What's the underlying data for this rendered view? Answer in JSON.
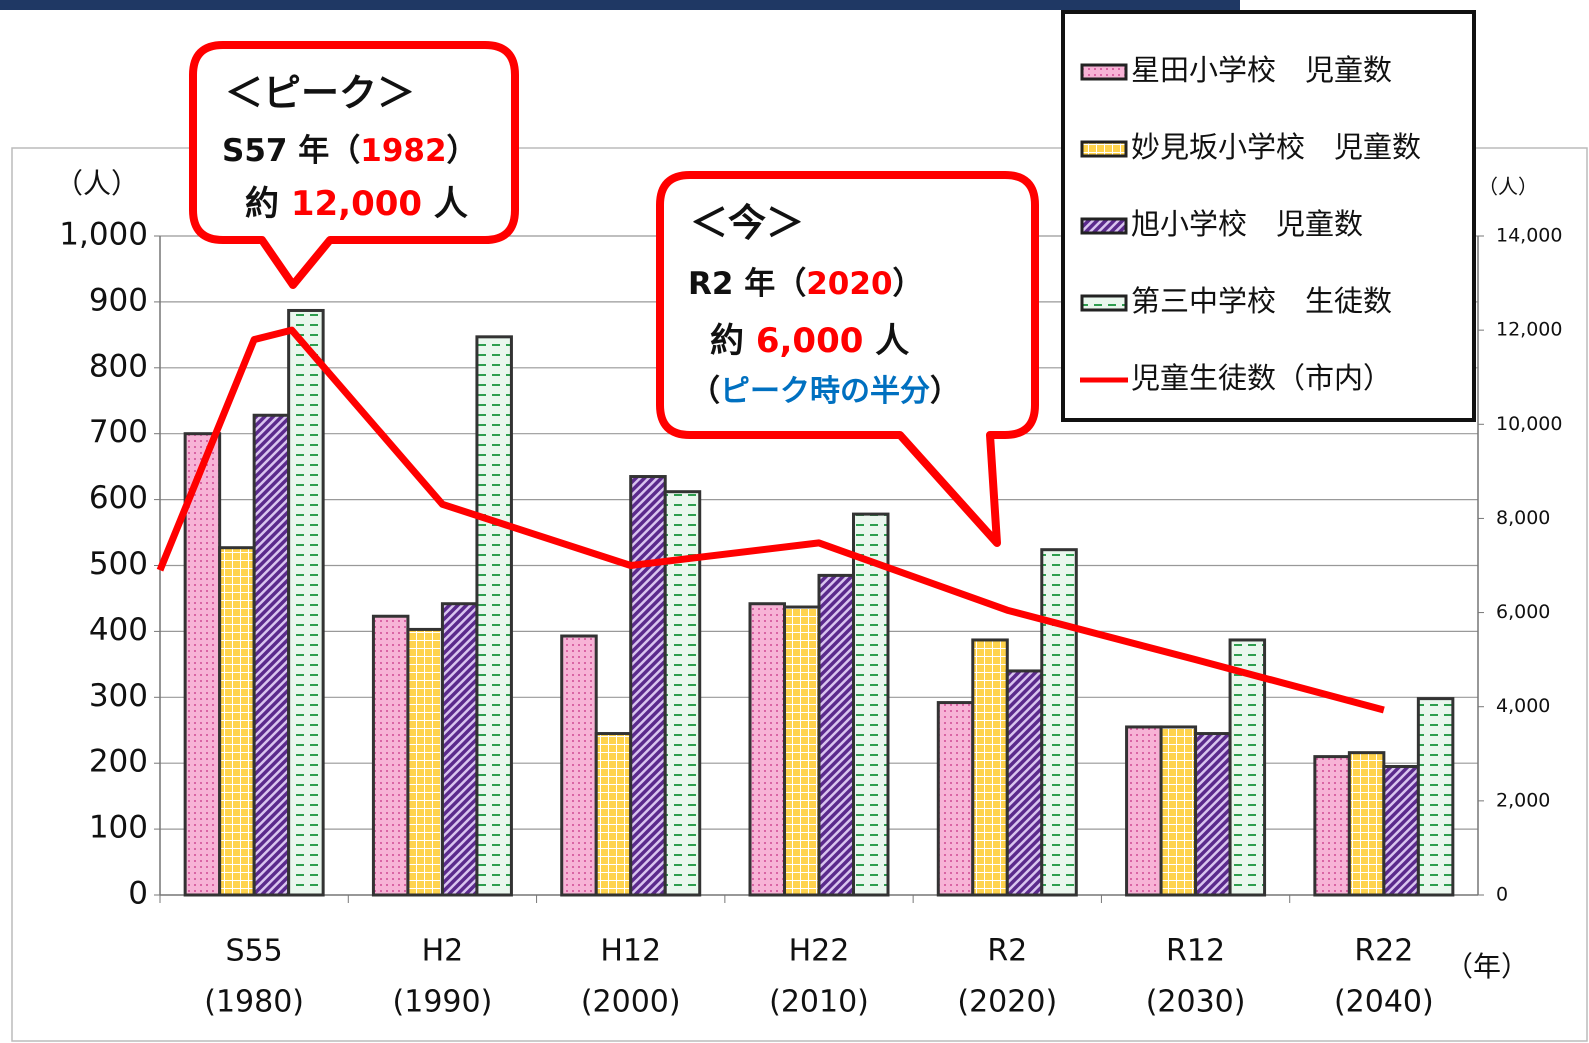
{
  "chart_data": {
    "type": "bar_line",
    "categories": [
      "S55",
      "H2",
      "H12",
      "H22",
      "R2",
      "R12",
      "R22"
    ],
    "category_years": [
      "(1980)",
      "(1990)",
      "(2000)",
      "(2010)",
      "(2020)",
      "(2030)",
      "(2040)"
    ],
    "ylabel": "（人）",
    "y2label": "（人）",
    "xlabel": "（年）",
    "ylim": [
      0,
      1000
    ],
    "yticks": [
      0,
      100,
      200,
      300,
      400,
      500,
      600,
      700,
      800,
      900,
      {
        "value": 1000,
        "label": "1,000"
      }
    ],
    "y2lim": [
      0,
      14000
    ],
    "y2ticks": [
      0,
      {
        "value": 2000,
        "label": "2,000"
      },
      {
        "value": 4000,
        "label": "4,000"
      },
      {
        "value": 6000,
        "label": "6,000"
      },
      {
        "value": 8000,
        "label": "8,000"
      },
      {
        "value": 10000,
        "label": "10,000"
      },
      {
        "value": 12000,
        "label": "12,000"
      },
      {
        "value": 14000,
        "label": "14,000"
      }
    ],
    "xlim": [
      1975,
      2045
    ],
    "grid": true,
    "legend": "upper right",
    "series": [
      {
        "name": "星田小学校　児童数",
        "color": "#f7b3d6",
        "pattern": "dots",
        "values": [
          700,
          423,
          393,
          442,
          292,
          255,
          210
        ]
      },
      {
        "name": "妙見坂小学校　児童数",
        "color": "#ffd34d",
        "pattern": "grid",
        "values": [
          527,
          403,
          245,
          437,
          387,
          255,
          216
        ]
      },
      {
        "name": "旭小学校　児童数",
        "color": "#7030a0",
        "pattern": "stripes",
        "values": [
          728,
          442,
          635,
          485,
          340,
          245,
          195
        ]
      },
      {
        "name": "第三中学校　生徒数",
        "color": "#2e9e4f",
        "pattern": "dashes",
        "values": [
          887,
          847,
          612,
          578,
          524,
          387,
          298
        ]
      },
      {
        "name": "児童生徒数（市内）",
        "color": "#ff0000",
        "type": "line",
        "axis": "y2",
        "x": [
          1975,
          1980,
          1982,
          1990,
          2000,
          2010,
          2020,
          2030,
          2040
        ],
        "values": [
          6900,
          11800,
          12000,
          8300,
          7000,
          7480,
          6050,
          5000,
          3930
        ]
      }
    ],
    "annotations": [
      {
        "lines": [
          [
            {
              "text": "＜ピーク＞"
            }
          ],
          [
            {
              "text": "S57 年"
            },
            {
              "text": "（"
            },
            {
              "text": "1982",
              "color": "#ff0000"
            },
            {
              "text": "）"
            }
          ],
          [
            {
              "text": "約 "
            },
            {
              "text": "12,000",
              "color": "#ff0000"
            },
            {
              "text": " 人"
            }
          ]
        ]
      },
      {
        "lines": [
          [
            {
              "text": "＜今＞"
            }
          ],
          [
            {
              "text": "R2 年"
            },
            {
              "text": "（"
            },
            {
              "text": "2020",
              "color": "#ff0000"
            },
            {
              "text": "）"
            }
          ],
          [
            {
              "text": "約 "
            },
            {
              "text": "6,000",
              "color": "#ff0000"
            },
            {
              "text": " 人"
            }
          ],
          [
            {
              "text": "（"
            },
            {
              "text": "ピーク時の半分",
              "color": "#0070c0"
            },
            {
              "text": "）"
            }
          ]
        ]
      }
    ]
  }
}
